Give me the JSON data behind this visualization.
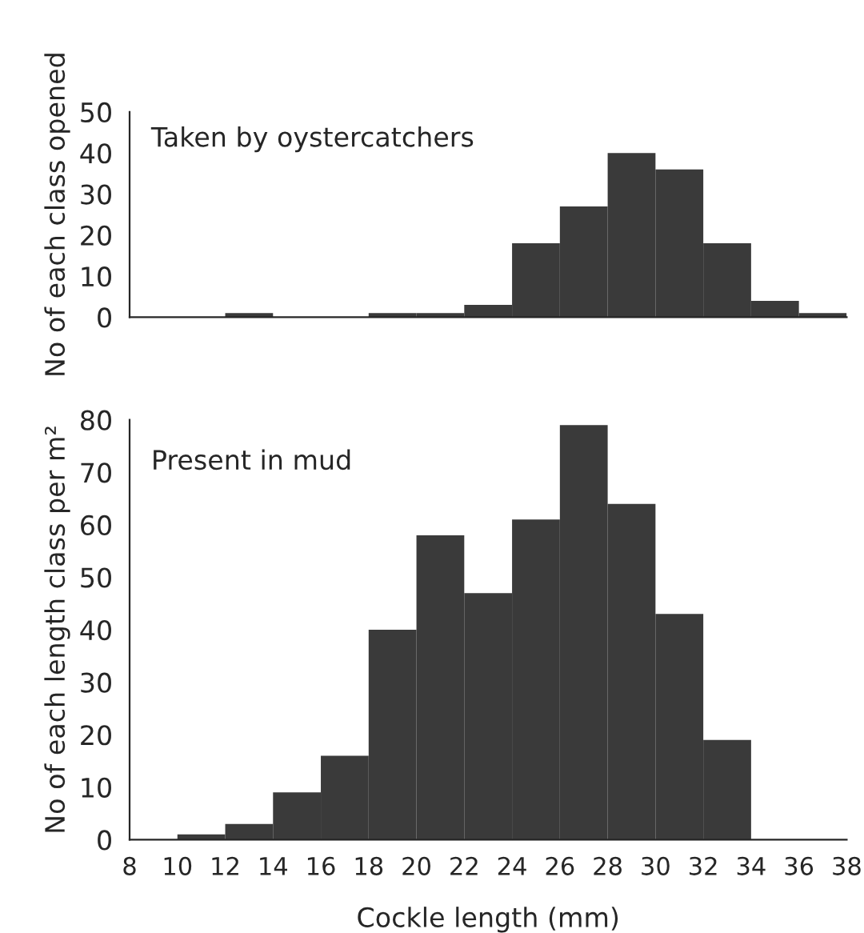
{
  "chart_data": [
    {
      "type": "histogram",
      "ylabel": "No of each class opened",
      "annotations": [
        "Taken by oystercatchers"
      ],
      "bins": [
        8,
        10,
        12,
        14,
        16,
        18,
        20,
        22,
        24,
        26,
        28,
        30,
        32,
        34,
        36,
        38
      ],
      "values": [
        0,
        0,
        1,
        0,
        0,
        1,
        1,
        3,
        18,
        27,
        40,
        36,
        18,
        4,
        1
      ],
      "color": "#3a3a3a",
      "xlim": [
        8,
        38
      ],
      "xticks": [
        8,
        10,
        12,
        14,
        16,
        18,
        20,
        22,
        24,
        26,
        28,
        30,
        32,
        34,
        36,
        38
      ],
      "ylim": [
        0,
        50
      ],
      "yticks": [
        0,
        10,
        20,
        30,
        40,
        50
      ],
      "tick_labels": "y"
    },
    {
      "type": "histogram",
      "ylabel": "No of each length class per m²",
      "xlabel": "Cockle length (mm)",
      "annotations": [
        "Present in mud"
      ],
      "bins": [
        8,
        10,
        12,
        14,
        16,
        18,
        20,
        22,
        24,
        26,
        28,
        30,
        32,
        34,
        36,
        38
      ],
      "values": [
        0,
        1,
        3,
        9,
        16,
        40,
        58,
        47,
        61,
        79,
        64,
        43,
        19,
        0,
        0
      ],
      "color": "#3a3a3a",
      "xlim": [
        8,
        38
      ],
      "xticks": [
        8,
        10,
        12,
        14,
        16,
        18,
        20,
        22,
        24,
        26,
        28,
        30,
        32,
        34,
        36,
        38
      ],
      "ylim": [
        0,
        80
      ],
      "yticks": [
        0,
        10,
        20,
        30,
        40,
        50,
        60,
        70,
        80
      ]
    }
  ]
}
